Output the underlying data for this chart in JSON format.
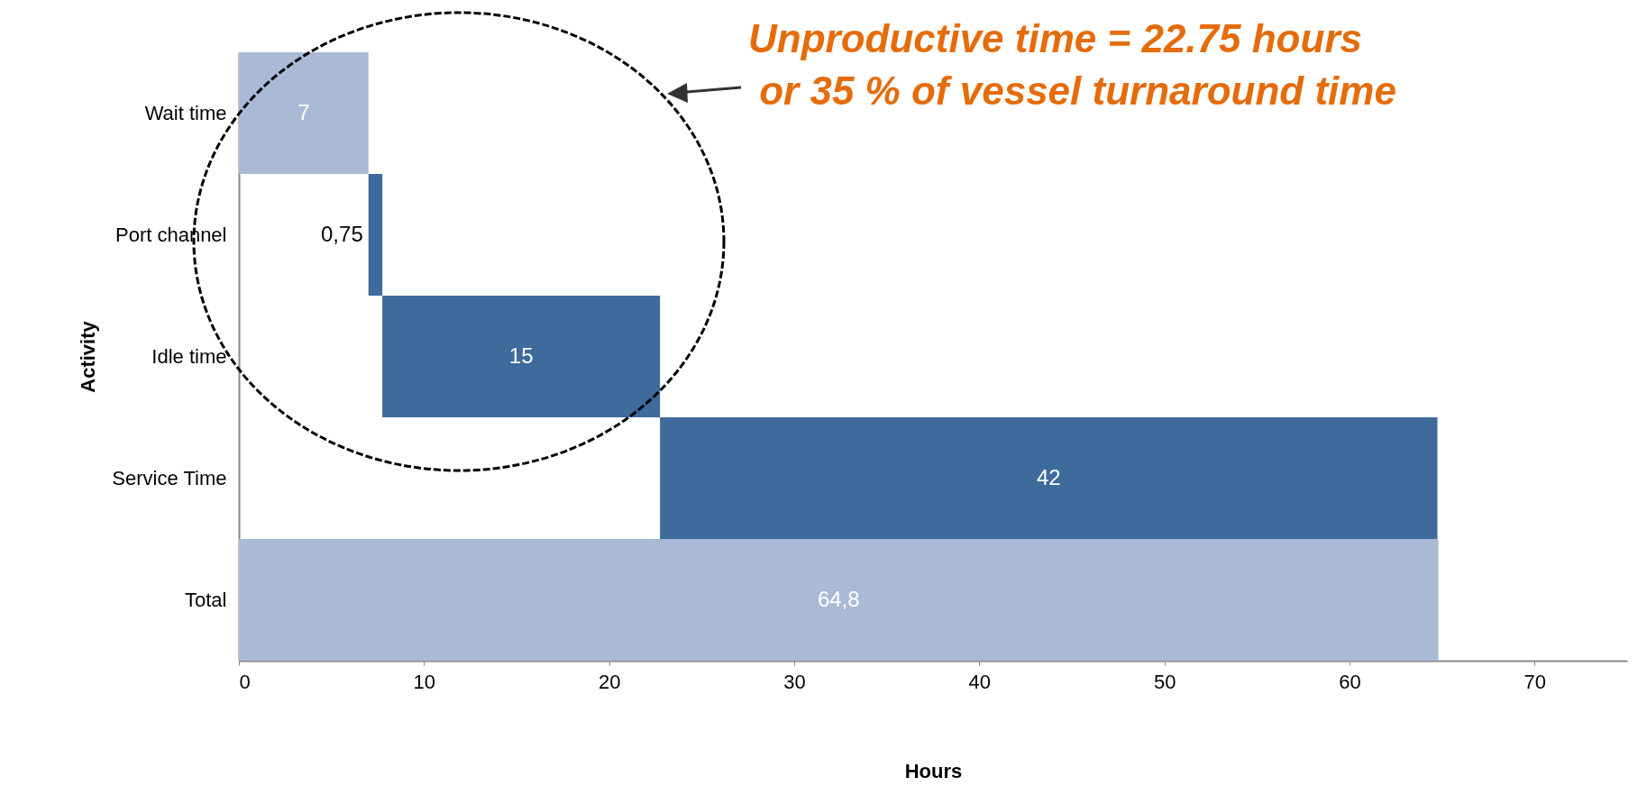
{
  "chart_data": {
    "type": "bar",
    "orientation": "horizontal",
    "xlabel": "Hours",
    "ylabel": "Activity",
    "categories": [
      "Wait time",
      "Port channel",
      "Idle time",
      "Service Time",
      "Total"
    ],
    "values": [
      7,
      0.75,
      15,
      42,
      64.8
    ],
    "base": [
      0,
      7,
      7.75,
      22.75,
      0
    ],
    "colors": [
      "#aab9d6",
      "#3f6a9c",
      "#3f6a9c",
      "#3f6a9c",
      "#aab9d6"
    ],
    "value_labels": [
      "7",
      "0,75",
      "15",
      "42",
      "64,8"
    ],
    "xlim": [
      0,
      75
    ],
    "xticks": [
      0,
      10,
      20,
      30,
      40,
      50,
      60,
      70
    ],
    "grid": false,
    "annotations": [
      "Unproductive time = 22.75 hours\n or 35 % of vessel turnaround time"
    ]
  }
}
